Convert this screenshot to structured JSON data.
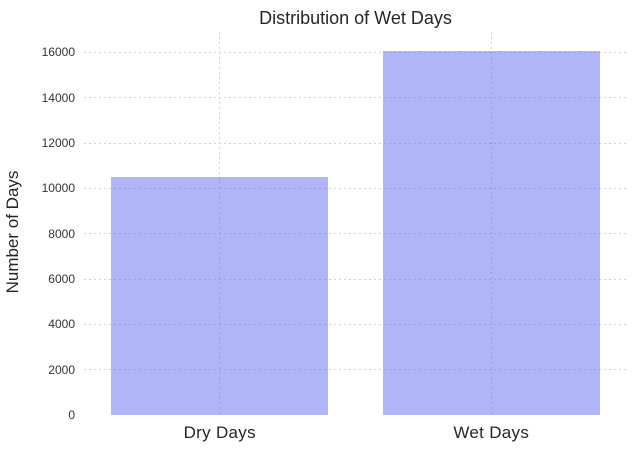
{
  "chart_data": {
    "type": "bar",
    "title": "Distribution of Wet Days",
    "categories": [
      "Dry Days",
      "Wet Days"
    ],
    "values": [
      10500,
      16050
    ],
    "xlabel": "",
    "ylabel": "Number of Days",
    "yticks": [
      0,
      2000,
      4000,
      6000,
      8000,
      10000,
      12000,
      14000,
      16000
    ],
    "ylim": [
      0,
      16900
    ],
    "legend_position": "none",
    "grid": "dotted, horizontal at each y-tick and vertical at each category center, drawn under translucent bars",
    "bar_width_fraction": 0.8,
    "colors": {
      "bar_fill": "rgba(97,105,241,0.5)",
      "bar_fill_on_white": "#b0b4f8",
      "grid_color": "#cfcfcf",
      "background": "#ffffff",
      "text_color": "#262626",
      "tick_text_color": "#333333"
    }
  }
}
